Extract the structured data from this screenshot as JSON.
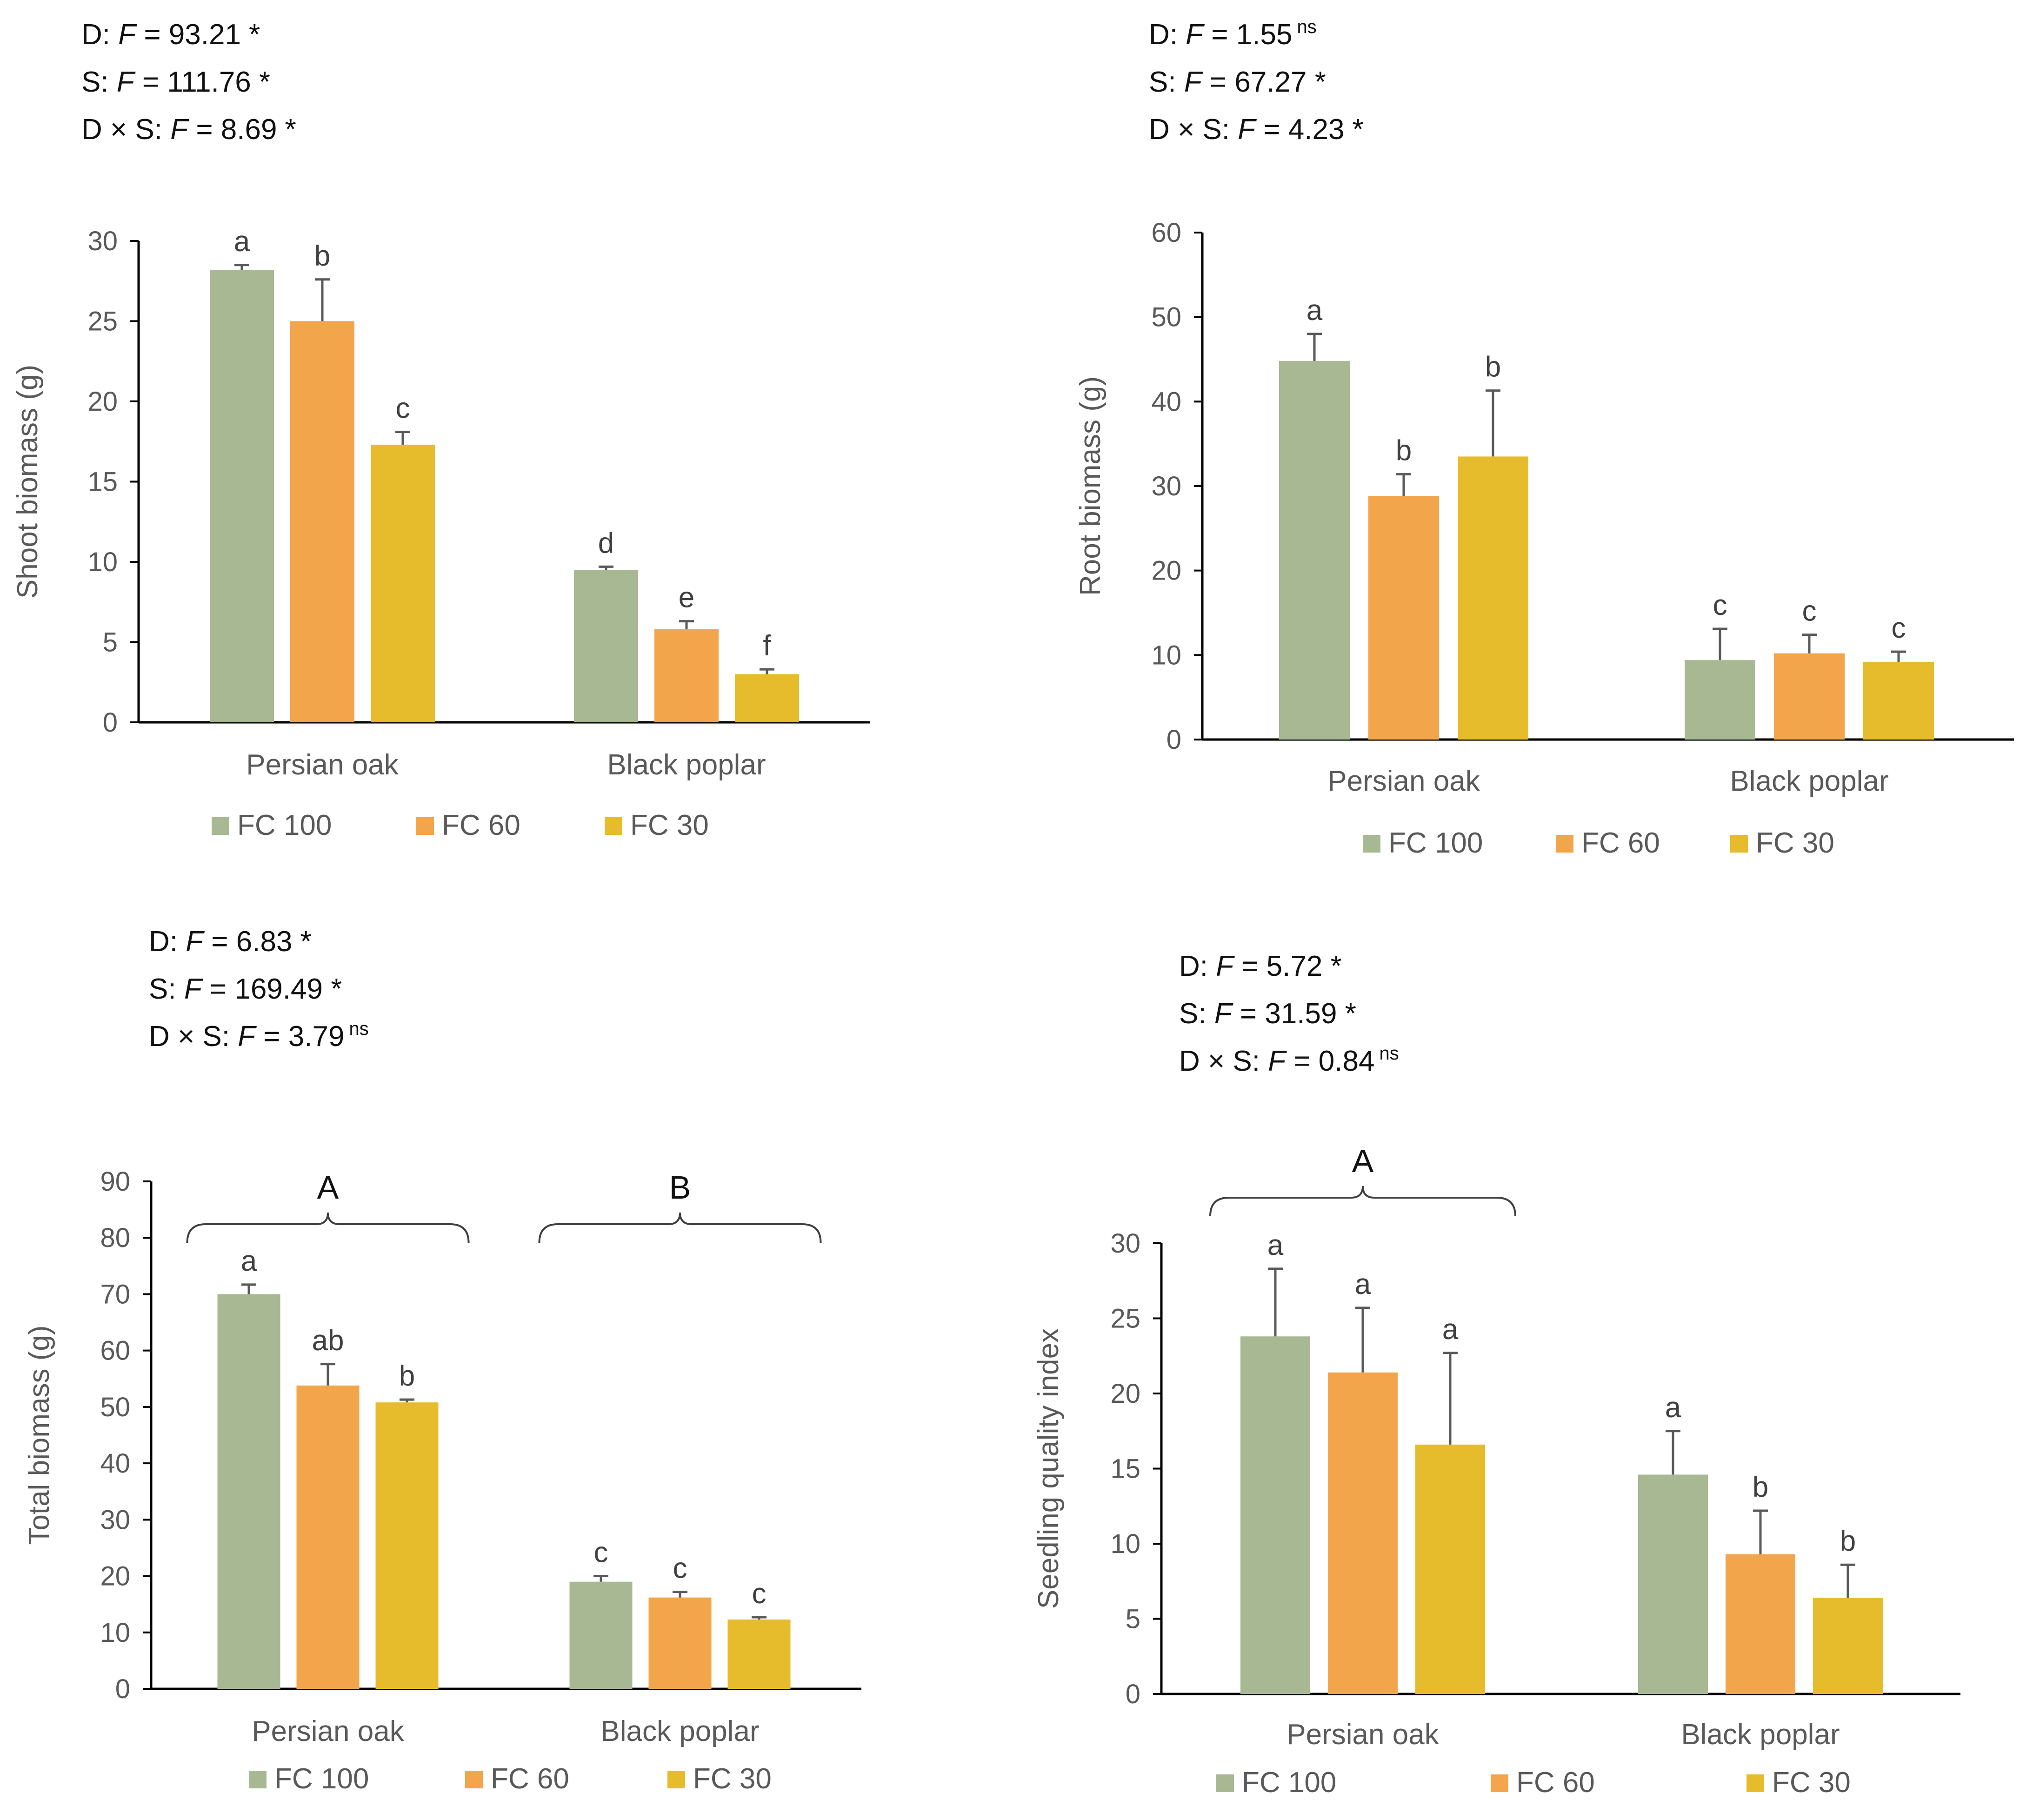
{
  "colors": {
    "FC 100": "#a7b893",
    "FC 60": "#f2a54a",
    "FC 30": "#e6bc2c",
    "axis": "#000000",
    "text": "#595959"
  },
  "chart_data": [
    {
      "type": "bar",
      "ylabel": "Shoot biomass (g)",
      "ylim": [
        0,
        30
      ],
      "ytick_step": 5,
      "categories": [
        "Persian oak",
        "Black poplar"
      ],
      "legend": [
        "FC 100",
        "FC 60",
        "FC 30"
      ],
      "series": [
        {
          "name": "FC 100",
          "values": [
            28.2,
            9.5
          ],
          "errors": [
            0.3,
            0.2
          ],
          "letters": [
            "a",
            "d"
          ]
        },
        {
          "name": "FC 60",
          "values": [
            25.0,
            5.8
          ],
          "errors": [
            2.6,
            0.5
          ],
          "letters": [
            "b",
            "e"
          ]
        },
        {
          "name": "FC 30",
          "values": [
            17.3,
            3.0
          ],
          "errors": [
            0.8,
            0.3
          ],
          "letters": [
            "c",
            "f"
          ]
        }
      ],
      "stats": [
        {
          "label": "D: ",
          "var": "F",
          "value": " = 93.21",
          "sig": " *",
          "sup": false
        },
        {
          "label": "S: ",
          "var": "F",
          "value": " = 111.76",
          "sig": " *",
          "sup": false
        },
        {
          "label": "D × S: ",
          "var": "F",
          "value": " = 8.69",
          "sig": " *",
          "sup": false
        }
      ],
      "groups": []
    },
    {
      "type": "bar",
      "ylabel": "Root biomass (g)",
      "ylim": [
        0,
        60
      ],
      "ytick_step": 10,
      "categories": [
        "Persian oak",
        "Black poplar"
      ],
      "legend": [
        "FC 100",
        "FC 60",
        "FC 30"
      ],
      "series": [
        {
          "name": "FC 100",
          "values": [
            44.8,
            9.4
          ],
          "errors": [
            3.2,
            3.7
          ],
          "letters": [
            "a",
            "c"
          ]
        },
        {
          "name": "FC 60",
          "values": [
            28.8,
            10.2
          ],
          "errors": [
            2.6,
            2.2
          ],
          "letters": [
            "b",
            "c"
          ]
        },
        {
          "name": "FC 30",
          "values": [
            33.5,
            9.2
          ],
          "errors": [
            7.8,
            1.2
          ],
          "letters": [
            "b",
            "c"
          ]
        }
      ],
      "stats": [
        {
          "label": "D: ",
          "var": "F",
          "value": " = 1.55",
          "sig": "ns",
          "sup": true
        },
        {
          "label": "S: ",
          "var": "F",
          "value": " = 67.27",
          "sig": " *",
          "sup": false
        },
        {
          "label": "D × S: ",
          "var": "F",
          "value": " = 4.23",
          "sig": " *",
          "sup": false
        }
      ],
      "groups": []
    },
    {
      "type": "bar",
      "ylabel": "Total biomass (g)",
      "ylim": [
        0,
        90
      ],
      "ytick_step": 10,
      "categories": [
        "Persian oak",
        "Black poplar"
      ],
      "legend": [
        "FC 100",
        "FC 60",
        "FC 30"
      ],
      "series": [
        {
          "name": "FC 100",
          "values": [
            70.0,
            19.0
          ],
          "errors": [
            1.7,
            1.0
          ],
          "letters": [
            "a",
            "c"
          ]
        },
        {
          "name": "FC 60",
          "values": [
            53.8,
            16.2
          ],
          "errors": [
            3.8,
            1.0
          ],
          "letters": [
            "ab",
            "c"
          ]
        },
        {
          "name": "FC 30",
          "values": [
            50.8,
            12.3
          ],
          "errors": [
            0.5,
            0.4
          ],
          "letters": [
            "b",
            "c"
          ]
        }
      ],
      "stats": [
        {
          "label": "D: ",
          "var": "F",
          "value": " = 6.83",
          "sig": " *",
          "sup": false
        },
        {
          "label": "S: ",
          "var": "F",
          "value": " = 169.49",
          "sig": " *",
          "sup": false
        },
        {
          "label": "D × S: ",
          "var": "F",
          "value": " = 3.79",
          "sig": "ns",
          "sup": true
        }
      ],
      "groups": [
        {
          "category": "Persian oak",
          "letter": "A"
        },
        {
          "category": "Black poplar",
          "letter": "B"
        }
      ]
    },
    {
      "type": "bar",
      "ylabel": "Seedling quality index",
      "ylim": [
        0,
        30
      ],
      "ytick_step": 5,
      "categories": [
        "Persian oak",
        "Black poplar"
      ],
      "legend": [
        "FC 100",
        "FC 60",
        "FC 30"
      ],
      "series": [
        {
          "name": "FC 100",
          "values": [
            23.8,
            14.6
          ],
          "errors": [
            4.5,
            2.9
          ],
          "letters": [
            "a",
            "a"
          ]
        },
        {
          "name": "FC 60",
          "values": [
            21.4,
            9.3
          ],
          "errors": [
            4.3,
            2.9
          ],
          "letters": [
            "a",
            "b"
          ]
        },
        {
          "name": "FC 30",
          "values": [
            16.6,
            6.4
          ],
          "errors": [
            6.1,
            2.2
          ],
          "letters": [
            "a",
            "b"
          ]
        }
      ],
      "stats": [
        {
          "label": "D: ",
          "var": "F",
          "value": " = 5.72",
          "sig": " *",
          "sup": false
        },
        {
          "label": "S: ",
          "var": "F",
          "value": " = 31.59",
          "sig": " *",
          "sup": false
        },
        {
          "label": "D × S: ",
          "var": "F",
          "value": " = 0.84",
          "sig": "ns",
          "sup": true
        }
      ],
      "groups": [
        {
          "category": "Persian oak",
          "letter": "A"
        }
      ]
    }
  ]
}
